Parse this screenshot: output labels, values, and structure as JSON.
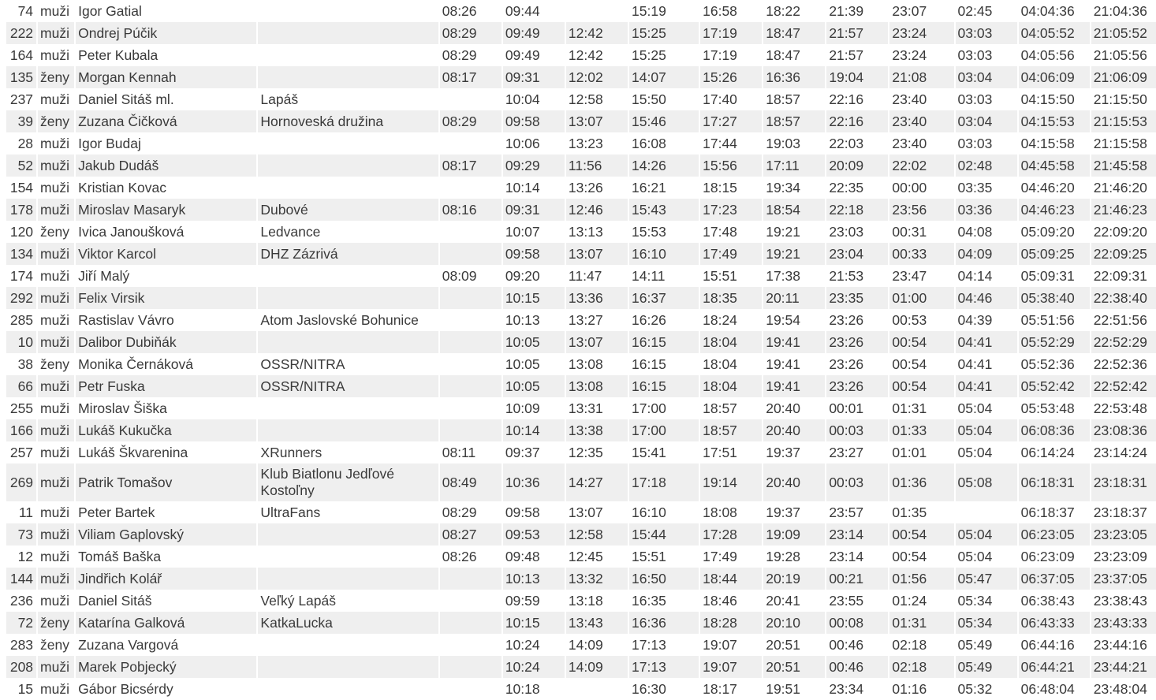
{
  "results": {
    "shade_color": "#efefef",
    "rows": [
      [
        "74",
        "muži",
        "Igor Gatial",
        "",
        "08:26",
        "09:44",
        "",
        "15:19",
        "16:58",
        "18:22",
        "21:39",
        "23:07",
        "02:45",
        "04:04:36",
        "21:04:36"
      ],
      [
        "222",
        "muži",
        "Ondrej Púčik",
        "",
        "08:29",
        "09:49",
        "12:42",
        "15:25",
        "17:19",
        "18:47",
        "21:57",
        "23:24",
        "03:03",
        "04:05:52",
        "21:05:52"
      ],
      [
        "164",
        "muži",
        "Peter Kubala",
        "",
        "08:29",
        "09:49",
        "12:42",
        "15:25",
        "17:19",
        "18:47",
        "21:57",
        "23:24",
        "03:03",
        "04:05:56",
        "21:05:56"
      ],
      [
        "135",
        "ženy",
        "Morgan Kennah",
        "",
        "08:17",
        "09:31",
        "12:02",
        "14:07",
        "15:26",
        "16:36",
        "19:04",
        "21:08",
        "03:04",
        "04:06:09",
        "21:06:09"
      ],
      [
        "237",
        "muži",
        "Daniel Sitáš ml.",
        "Lapáš",
        "",
        "10:04",
        "12:58",
        "15:50",
        "17:40",
        "18:57",
        "22:16",
        "23:40",
        "03:03",
        "04:15:50",
        "21:15:50"
      ],
      [
        "39",
        "ženy",
        "Zuzana Čičková",
        "Hornoveská družina",
        "08:29",
        "09:58",
        "13:07",
        "15:46",
        "17:27",
        "18:57",
        "22:16",
        "23:40",
        "03:04",
        "04:15:53",
        "21:15:53"
      ],
      [
        "28",
        "muži",
        "Igor Budaj",
        "",
        "",
        "10:06",
        "13:23",
        "16:08",
        "17:44",
        "19:03",
        "22:03",
        "23:40",
        "03:03",
        "04:15:58",
        "21:15:58"
      ],
      [
        "52",
        "muži",
        "Jakub Dudáš",
        "",
        "08:17",
        "09:29",
        "11:56",
        "14:26",
        "15:56",
        "17:11",
        "20:09",
        "22:02",
        "02:48",
        "04:45:58",
        "21:45:58"
      ],
      [
        "154",
        "muži",
        "Kristian Kovac",
        "",
        "",
        "10:14",
        "13:26",
        "16:21",
        "18:15",
        "19:34",
        "22:35",
        "00:00",
        "03:35",
        "04:46:20",
        "21:46:20"
      ],
      [
        "178",
        "muži",
        "Miroslav Masaryk",
        "Dubové",
        "08:16",
        "09:31",
        "12:46",
        "15:43",
        "17:23",
        "18:54",
        "22:18",
        "23:56",
        "03:36",
        "04:46:23",
        "21:46:23"
      ],
      [
        "120",
        "ženy",
        "Ivica Janoušková",
        "Ledvance",
        "",
        "10:07",
        "13:13",
        "15:53",
        "17:48",
        "19:21",
        "23:03",
        "00:31",
        "04:08",
        "05:09:20",
        "22:09:20"
      ],
      [
        "134",
        "muži",
        "Viktor Karcol",
        "DHZ Zázrivá",
        "",
        "09:58",
        "13:07",
        "16:10",
        "17:49",
        "19:21",
        "23:04",
        "00:33",
        "04:09",
        "05:09:25",
        "22:09:25"
      ],
      [
        "174",
        "muži",
        "Jiří Malý",
        "",
        "08:09",
        "09:20",
        "11:47",
        "14:11",
        "15:51",
        "17:38",
        "21:53",
        "23:47",
        "04:14",
        "05:09:31",
        "22:09:31"
      ],
      [
        "292",
        "muži",
        "Felix Virsik",
        "",
        "",
        "10:15",
        "13:36",
        "16:37",
        "18:35",
        "20:11",
        "23:35",
        "01:00",
        "04:46",
        "05:38:40",
        "22:38:40"
      ],
      [
        "285",
        "muži",
        "Rastislav Vávro",
        "Atom Jaslovské Bohunice",
        "",
        "10:13",
        "13:27",
        "16:26",
        "18:24",
        "19:54",
        "23:26",
        "00:53",
        "04:39",
        "05:51:56",
        "22:51:56"
      ],
      [
        "10",
        "muži",
        "Dalibor Dubiňák",
        "",
        "",
        "10:05",
        "13:07",
        "16:15",
        "18:04",
        "19:41",
        "23:26",
        "00:54",
        "04:41",
        "05:52:29",
        "22:52:29"
      ],
      [
        "38",
        "ženy",
        "Monika Černáková",
        "OSSR/NITRA",
        "",
        "10:05",
        "13:08",
        "16:15",
        "18:04",
        "19:41",
        "23:26",
        "00:54",
        "04:41",
        "05:52:36",
        "22:52:36"
      ],
      [
        "66",
        "muži",
        "Petr Fuska",
        "OSSR/NITRA",
        "",
        "10:05",
        "13:08",
        "16:15",
        "18:04",
        "19:41",
        "23:26",
        "00:54",
        "04:41",
        "05:52:42",
        "22:52:42"
      ],
      [
        "255",
        "muži",
        "Miroslav Šiška",
        "",
        "",
        "10:09",
        "13:31",
        "17:00",
        "18:57",
        "20:40",
        "00:01",
        "01:31",
        "05:04",
        "05:53:48",
        "22:53:48"
      ],
      [
        "166",
        "muži",
        "Lukáš Kukučka",
        "",
        "",
        "10:14",
        "13:38",
        "17:00",
        "18:57",
        "20:40",
        "00:03",
        "01:33",
        "05:04",
        "06:08:36",
        "23:08:36"
      ],
      [
        "257",
        "muži",
        "Lukáš Škvarenina",
        "XRunners",
        "08:11",
        "09:37",
        "12:35",
        "15:41",
        "17:51",
        "19:37",
        "23:27",
        "01:01",
        "05:04",
        "06:14:24",
        "23:14:24"
      ],
      [
        "269",
        "muži",
        "Patrik Tomašov",
        "Klub Biatlonu Jedľové Kostoľny",
        "08:49",
        "10:36",
        "14:27",
        "17:18",
        "19:14",
        "20:40",
        "00:03",
        "01:36",
        "05:08",
        "06:18:31",
        "23:18:31"
      ],
      [
        "11",
        "muži",
        "Peter Bartek",
        "UltraFans",
        "08:29",
        "09:58",
        "13:07",
        "16:10",
        "18:08",
        "19:37",
        "23:57",
        "01:35",
        "",
        "06:18:37",
        "23:18:37"
      ],
      [
        "73",
        "muži",
        "Viliam Gaplovský",
        "",
        "08:27",
        "09:53",
        "12:58",
        "15:44",
        "17:28",
        "19:09",
        "23:14",
        "00:54",
        "05:04",
        "06:23:05",
        "23:23:05"
      ],
      [
        "12",
        "muži",
        "Tomáš Baška",
        "",
        "08:26",
        "09:48",
        "12:45",
        "15:51",
        "17:49",
        "19:28",
        "23:14",
        "00:54",
        "05:04",
        "06:23:09",
        "23:23:09"
      ],
      [
        "144",
        "muži",
        "Jindřich Kolář",
        "",
        "",
        "10:13",
        "13:32",
        "16:50",
        "18:44",
        "20:19",
        "00:21",
        "01:56",
        "05:47",
        "06:37:05",
        "23:37:05"
      ],
      [
        "236",
        "muži",
        "Daniel Sitáš",
        "Veľký Lapáš",
        "",
        "09:59",
        "13:18",
        "16:35",
        "18:46",
        "20:41",
        "23:55",
        "01:24",
        "05:34",
        "06:38:43",
        "23:38:43"
      ],
      [
        "72",
        "ženy",
        "Katarína Galková",
        "KatkaLucka",
        "",
        "10:15",
        "13:43",
        "16:36",
        "18:28",
        "20:10",
        "00:08",
        "01:31",
        "05:34",
        "06:43:33",
        "23:43:33"
      ],
      [
        "283",
        "ženy",
        "Zuzana Vargová",
        "",
        "",
        "10:24",
        "14:09",
        "17:13",
        "19:07",
        "20:51",
        "00:46",
        "02:18",
        "05:49",
        "06:44:16",
        "23:44:16"
      ],
      [
        "208",
        "muži",
        "Marek Pobjecký",
        "",
        "",
        "10:24",
        "14:09",
        "17:13",
        "19:07",
        "20:51",
        "00:46",
        "02:18",
        "05:49",
        "06:44:21",
        "23:44:21"
      ],
      [
        "15",
        "muži",
        "Gábor Bicsérdy",
        "",
        "",
        "10:18",
        "",
        "16:30",
        "18:17",
        "19:51",
        "23:34",
        "01:16",
        "05:32",
        "06:48:04",
        "23:48:04"
      ]
    ]
  }
}
